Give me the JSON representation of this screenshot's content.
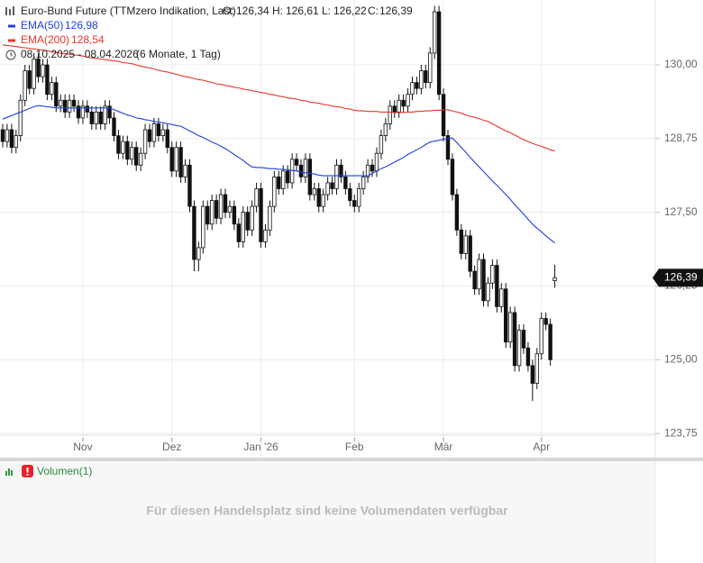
{
  "chart_data": {
    "type": "candlestick",
    "title": "Euro-Bund Future (TTMzero Indikation, Last)",
    "ohlc": [
      {
        "label": "O:",
        "value": "126,34"
      },
      {
        "label": "H:",
        "value": "126,61"
      },
      {
        "label": "L:",
        "value": "126,22"
      },
      {
        "label": "C:",
        "value": "126,39"
      }
    ],
    "period": "08.10.2025 - 08.04.2026",
    "period_note": "(6 Monate, 1 Tag)",
    "categories": [
      null,
      null,
      null,
      null,
      null,
      null,
      null,
      null,
      null,
      null,
      null,
      null,
      null,
      null,
      null,
      null,
      null,
      null,
      "Nov",
      null,
      null,
      null,
      null,
      null,
      null,
      null,
      null,
      null,
      null,
      null,
      null,
      null,
      null,
      null,
      null,
      null,
      null,
      null,
      "Dez",
      null,
      null,
      null,
      null,
      null,
      null,
      null,
      null,
      null,
      null,
      null,
      null,
      null,
      null,
      null,
      null,
      null,
      null,
      null,
      "Jan '26",
      null,
      null,
      null,
      null,
      null,
      null,
      null,
      null,
      null,
      null,
      null,
      null,
      null,
      null,
      null,
      null,
      null,
      null,
      null,
      null,
      "Feb",
      null,
      null,
      null,
      null,
      null,
      null,
      null,
      null,
      null,
      null,
      null,
      null,
      null,
      null,
      null,
      null,
      null,
      null,
      null,
      "Mär",
      null,
      null,
      null,
      null,
      null,
      null,
      null,
      null,
      null,
      null,
      null,
      null,
      null,
      null,
      null,
      null,
      null,
      null,
      null,
      null,
      null,
      "Apr",
      null,
      null,
      null
    ],
    "open": [
      128.9,
      128.7,
      128.9,
      128.6,
      128.8,
      129.4,
      129.9,
      129.6,
      130.1,
      129.8,
      130.0,
      129.5,
      129.7,
      129.3,
      129.4,
      129.2,
      129.4,
      129.3,
      129.1,
      129.3,
      129.2,
      129.0,
      129.2,
      129.0,
      129.3,
      129.1,
      128.8,
      128.5,
      128.7,
      128.4,
      128.6,
      128.3,
      128.5,
      128.9,
      128.7,
      129.0,
      128.8,
      128.9,
      128.6,
      128.2,
      128.6,
      128.1,
      128.3,
      127.6,
      126.7,
      126.9,
      127.6,
      127.3,
      127.7,
      127.4,
      127.8,
      127.5,
      127.6,
      127.3,
      127.0,
      127.5,
      127.2,
      127.6,
      127.9,
      127.0,
      127.2,
      127.6,
      128.1,
      127.9,
      128.2,
      128.0,
      128.4,
      128.3,
      128.1,
      128.4,
      127.8,
      127.9,
      127.6,
      127.8,
      128.0,
      127.9,
      128.3,
      128.1,
      127.9,
      127.7,
      127.6,
      127.9,
      128.1,
      128.3,
      128.2,
      128.5,
      128.8,
      129.0,
      129.3,
      129.2,
      129.4,
      129.3,
      129.5,
      129.7,
      129.6,
      129.9,
      129.7,
      130.2,
      130.9,
      129.5,
      128.8,
      128.4,
      127.8,
      127.2,
      126.8,
      127.1,
      126.5,
      126.2,
      126.7,
      126.0,
      126.3,
      126.6,
      125.9,
      126.2,
      125.3,
      125.8,
      124.9,
      125.5,
      125.2,
      124.9,
      124.6,
      125.1,
      125.7,
      125.6,
      126.34
    ],
    "high": [
      129.0,
      129.0,
      129.0,
      128.9,
      129.5,
      130.0,
      130.0,
      130.2,
      130.2,
      130.1,
      130.1,
      129.8,
      129.8,
      129.5,
      129.5,
      129.5,
      129.5,
      129.4,
      129.4,
      129.4,
      129.3,
      129.3,
      129.3,
      129.4,
      129.4,
      129.2,
      128.9,
      128.8,
      128.8,
      128.7,
      128.7,
      128.6,
      129.0,
      129.0,
      129.1,
      129.1,
      129.0,
      129.0,
      128.7,
      128.7,
      128.7,
      128.4,
      128.4,
      127.7,
      127.0,
      127.7,
      127.7,
      127.8,
      127.8,
      127.9,
      127.9,
      127.7,
      127.7,
      127.4,
      127.6,
      127.6,
      127.7,
      128.0,
      128.0,
      127.3,
      127.7,
      128.2,
      128.2,
      128.3,
      128.3,
      128.5,
      128.5,
      128.4,
      128.5,
      128.5,
      128.0,
      128.0,
      127.9,
      128.1,
      128.1,
      128.4,
      128.4,
      128.2,
      128.0,
      127.8,
      128.0,
      128.2,
      128.4,
      128.4,
      128.6,
      128.9,
      129.1,
      129.4,
      129.4,
      129.5,
      129.5,
      129.6,
      129.8,
      129.8,
      130.0,
      130.0,
      130.3,
      131.0,
      131.0,
      129.6,
      128.9,
      128.5,
      127.9,
      127.3,
      127.2,
      127.2,
      126.6,
      126.8,
      126.8,
      126.4,
      126.7,
      126.7,
      126.3,
      126.3,
      125.9,
      125.9,
      125.6,
      125.6,
      125.3,
      125.0,
      125.2,
      125.8,
      125.8,
      125.7,
      126.61
    ],
    "low": [
      128.6,
      128.6,
      128.5,
      128.5,
      128.7,
      129.3,
      129.5,
      129.5,
      129.7,
      129.7,
      129.4,
      129.4,
      129.2,
      129.2,
      129.1,
      129.1,
      129.2,
      129.0,
      129.0,
      129.1,
      128.9,
      128.9,
      128.9,
      128.9,
      129.0,
      128.7,
      128.4,
      128.4,
      128.3,
      128.3,
      128.2,
      128.2,
      128.4,
      128.6,
      128.6,
      128.7,
      128.7,
      128.5,
      128.1,
      128.1,
      128.0,
      128.0,
      127.5,
      126.5,
      126.5,
      126.8,
      127.2,
      127.2,
      127.3,
      127.3,
      127.4,
      127.4,
      127.2,
      126.9,
      126.9,
      127.1,
      127.1,
      127.5,
      126.9,
      126.9,
      127.1,
      127.5,
      127.8,
      127.8,
      127.9,
      127.9,
      128.2,
      128.0,
      128.0,
      127.7,
      127.7,
      127.5,
      127.5,
      127.7,
      127.8,
      127.8,
      128.0,
      127.8,
      127.6,
      127.5,
      127.5,
      127.8,
      128.0,
      128.1,
      128.1,
      128.4,
      128.7,
      128.9,
      129.1,
      129.1,
      129.2,
      129.2,
      129.4,
      129.5,
      129.5,
      129.6,
      129.6,
      130.1,
      129.4,
      128.7,
      128.3,
      127.7,
      127.1,
      126.7,
      126.7,
      126.4,
      126.1,
      126.1,
      125.9,
      125.9,
      126.2,
      125.8,
      125.8,
      125.2,
      125.2,
      124.8,
      124.8,
      125.1,
      124.8,
      124.3,
      124.5,
      125.0,
      125.5,
      124.9,
      126.22
    ],
    "close": [
      128.7,
      128.9,
      128.6,
      128.8,
      129.4,
      129.9,
      129.6,
      130.1,
      129.8,
      130.0,
      129.5,
      129.7,
      129.3,
      129.4,
      129.2,
      129.4,
      129.3,
      129.1,
      129.3,
      129.2,
      129.0,
      129.2,
      129.0,
      129.3,
      129.1,
      128.8,
      128.5,
      128.7,
      128.4,
      128.6,
      128.3,
      128.5,
      128.9,
      128.7,
      129.0,
      128.8,
      128.9,
      128.6,
      128.2,
      128.6,
      128.1,
      128.3,
      127.6,
      126.7,
      126.9,
      127.6,
      127.3,
      127.7,
      127.4,
      127.8,
      127.5,
      127.6,
      127.3,
      127.0,
      127.5,
      127.2,
      127.6,
      127.9,
      127.0,
      127.2,
      127.6,
      128.1,
      127.9,
      128.2,
      128.0,
      128.4,
      128.3,
      128.1,
      128.4,
      127.8,
      127.9,
      127.6,
      127.8,
      128.0,
      127.9,
      128.3,
      128.1,
      127.9,
      127.7,
      127.6,
      127.9,
      128.1,
      128.3,
      128.2,
      128.5,
      128.8,
      129.0,
      129.3,
      129.2,
      129.4,
      129.3,
      129.5,
      129.7,
      129.6,
      129.9,
      129.7,
      130.2,
      130.9,
      129.5,
      128.8,
      128.4,
      127.8,
      127.2,
      126.8,
      127.1,
      126.5,
      126.2,
      126.7,
      126.0,
      126.3,
      126.6,
      125.9,
      126.2,
      125.3,
      125.8,
      124.9,
      125.5,
      125.2,
      124.9,
      124.6,
      125.1,
      125.7,
      125.6,
      125.0,
      126.39
    ],
    "series": [
      {
        "name": "EMA(50)",
        "color": "#1f3fe0",
        "last_label": "126,98",
        "values": [
          129.08,
          129.11,
          129.14,
          129.17,
          129.2,
          129.23,
          129.26,
          129.29,
          129.31,
          129.3,
          129.29,
          129.28,
          129.27,
          129.27,
          129.27,
          129.27,
          129.27,
          129.27,
          129.27,
          129.27,
          129.27,
          129.27,
          129.27,
          129.27,
          129.27,
          129.24,
          129.21,
          129.18,
          129.15,
          129.13,
          129.1,
          129.09,
          129.07,
          129.06,
          129.04,
          129.03,
          129.02,
          129.0,
          128.99,
          128.97,
          128.96,
          128.92,
          128.88,
          128.84,
          128.8,
          128.77,
          128.73,
          128.69,
          128.66,
          128.62,
          128.58,
          128.53,
          128.48,
          128.43,
          128.38,
          128.32,
          128.27,
          128.26,
          128.26,
          128.25,
          128.24,
          128.24,
          128.23,
          128.23,
          128.22,
          128.21,
          128.2,
          128.18,
          128.17,
          128.16,
          128.15,
          128.13,
          128.12,
          128.12,
          128.12,
          128.12,
          128.12,
          128.12,
          128.12,
          128.12,
          128.12,
          128.12,
          128.12,
          128.16,
          128.2,
          128.24,
          128.27,
          128.31,
          128.35,
          128.39,
          128.43,
          128.48,
          128.52,
          128.56,
          128.6,
          128.65,
          128.69,
          128.71,
          128.72,
          128.74,
          128.75,
          128.76,
          128.68,
          128.6,
          128.52,
          128.43,
          128.35,
          128.27,
          128.19,
          128.11,
          128.03,
          127.96,
          127.88,
          127.8,
          127.72,
          127.63,
          127.55,
          127.47,
          127.38,
          127.3,
          127.23,
          127.17,
          127.1,
          127.04,
          126.98
        ]
      },
      {
        "name": "EMA(200)",
        "color": "#e8352a",
        "last_label": "128,54",
        "values": [
          130.34,
          130.33,
          130.32,
          130.31,
          130.3,
          130.29,
          130.28,
          130.27,
          130.26,
          130.25,
          130.24,
          130.22,
          130.21,
          130.2,
          130.19,
          130.18,
          130.17,
          130.16,
          130.15,
          130.13,
          130.12,
          130.11,
          130.1,
          130.09,
          130.08,
          130.07,
          130.06,
          130.04,
          130.03,
          130.02,
          130.0,
          129.98,
          129.96,
          129.95,
          129.93,
          129.91,
          129.89,
          129.88,
          129.86,
          129.84,
          129.82,
          129.8,
          129.79,
          129.77,
          129.75,
          129.74,
          129.72,
          129.7,
          129.68,
          129.67,
          129.65,
          129.64,
          129.62,
          129.61,
          129.59,
          129.58,
          129.56,
          129.55,
          129.53,
          129.52,
          129.5,
          129.49,
          129.47,
          129.46,
          129.44,
          129.43,
          129.42,
          129.4,
          129.39,
          129.37,
          129.36,
          129.35,
          129.33,
          129.32,
          129.3,
          129.29,
          129.28,
          129.26,
          129.25,
          129.23,
          129.22,
          129.22,
          129.21,
          129.21,
          129.21,
          129.2,
          129.2,
          129.2,
          129.19,
          129.19,
          129.19,
          129.2,
          129.2,
          129.21,
          129.21,
          129.22,
          129.22,
          129.23,
          129.23,
          129.24,
          129.24,
          129.22,
          129.2,
          129.18,
          129.15,
          129.13,
          129.11,
          129.09,
          129.06,
          129.04,
          129.0,
          128.96,
          128.92,
          128.88,
          128.85,
          128.81,
          128.77,
          128.73,
          128.7,
          128.67,
          128.64,
          128.62,
          128.59,
          128.56,
          128.54
        ]
      }
    ],
    "last_price_label": "126,39",
    "ylim": [
      123.34,
      131.1
    ],
    "yticks": [
      {
        "value": 123.75,
        "label": "123,75"
      },
      {
        "value": 125,
        "label": "125,00"
      },
      {
        "value": 126.25,
        "label": "126,25"
      },
      {
        "value": 127.5,
        "label": "127,50"
      },
      {
        "value": 128.75,
        "label": "128,75"
      },
      {
        "value": 130,
        "label": "130,00"
      }
    ],
    "grid": true,
    "volume_title": "Volumen(1)",
    "volume_message": "Für diesen Handelsplatz sind keine Volumendaten verfügbar"
  }
}
